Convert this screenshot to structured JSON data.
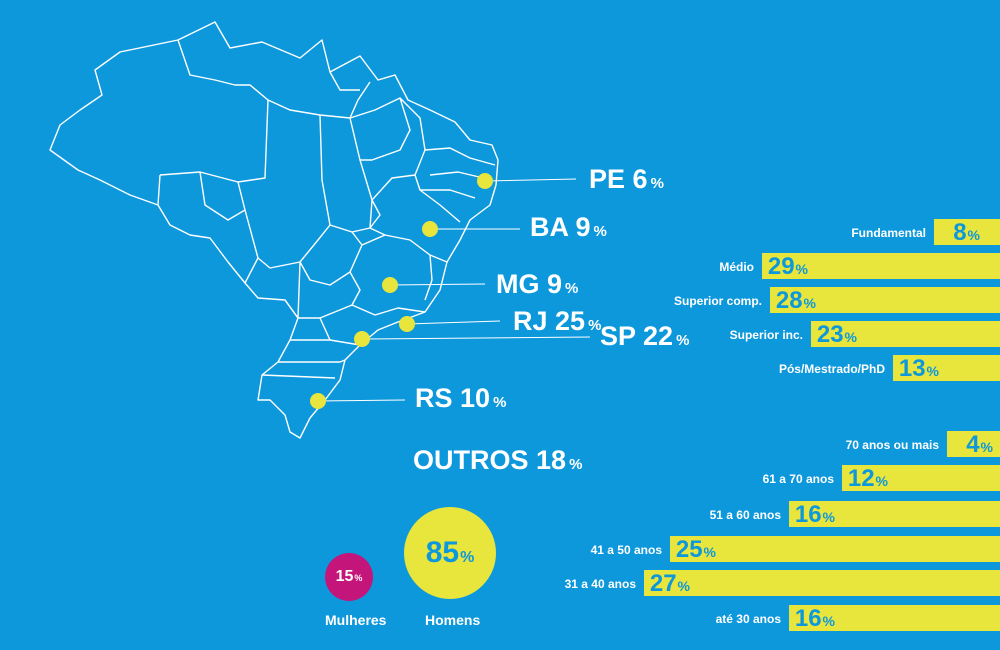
{
  "colors": {
    "background": "#0d98dc",
    "accent": "#e8e53c",
    "women": "#c4157a",
    "map_stroke": "#ffffff"
  },
  "states": [
    {
      "code": "PE",
      "value": 6,
      "pct": "%"
    },
    {
      "code": "BA",
      "value": 9,
      "pct": "%"
    },
    {
      "code": "MG",
      "value": 9,
      "pct": "%"
    },
    {
      "code": "RJ",
      "value": 25,
      "pct": "%"
    },
    {
      "code": "SP",
      "value": 22,
      "pct": "%"
    },
    {
      "code": "RS",
      "value": 10,
      "pct": "%"
    }
  ],
  "outros": {
    "label": "OUTROS",
    "value": 18,
    "pct": "%"
  },
  "gender": {
    "women": {
      "label": "Mulheres",
      "value": 15,
      "pct": "%"
    },
    "men": {
      "label": "Homens",
      "value": 85,
      "pct": "%"
    }
  },
  "chart_data": [
    {
      "type": "bar",
      "categories": [
        "Fundamental",
        "Médio",
        "Superior comp.",
        "Superior inc.",
        "Pós/Mestrado/PhD"
      ],
      "values": [
        8,
        29,
        28,
        23,
        13
      ],
      "unit": "%"
    },
    {
      "type": "bar",
      "categories": [
        "70 anos ou mais",
        "61 a 70 anos",
        "51 a 60 anos",
        "41 a 50 anos",
        "31 a 40 anos",
        "até 30 anos"
      ],
      "values": [
        4,
        12,
        16,
        25,
        27,
        16
      ],
      "unit": "%"
    }
  ]
}
